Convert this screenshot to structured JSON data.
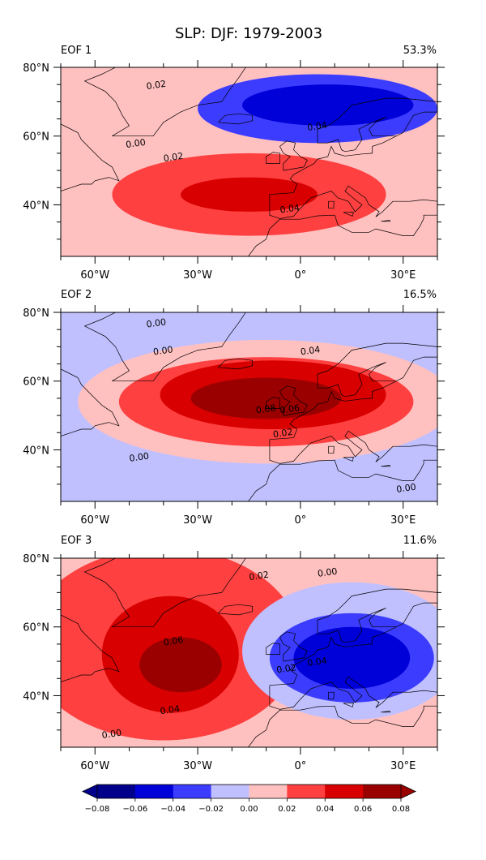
{
  "figure": {
    "title": "SLP: DJF: 1979-2003"
  },
  "colorbar": {
    "ticks": [
      "−0.08",
      "−0.06",
      "−0.04",
      "−0.02",
      "0.00",
      "0.02",
      "0.04",
      "0.06",
      "0.08"
    ],
    "levels": [
      -0.08,
      -0.06,
      -0.04,
      -0.02,
      0.0,
      0.02,
      0.04,
      0.06,
      0.08
    ],
    "colors": [
      "#00008b",
      "#0000d8",
      "#3c3cff",
      "#c0c0ff",
      "#ffc0c0",
      "#ff4040",
      "#d80000",
      "#9b0000"
    ],
    "extend": "both"
  },
  "map": {
    "lon_range": [
      -70,
      40
    ],
    "lat_range": [
      25,
      80
    ],
    "ytick_labels": [
      "80°N",
      "60°N",
      "40°N"
    ],
    "ytick_values": [
      80,
      60,
      40
    ],
    "xtick_labels": [
      "60°W",
      "30°W",
      "0°",
      "30°E"
    ],
    "xtick_values": [
      -60,
      -30,
      0,
      30
    ]
  },
  "chart_data": [
    {
      "type": "heatmap",
      "label": "EOF 1",
      "variance": "53.3%",
      "background_value": 0.01,
      "blobs": [
        {
          "lon": -15,
          "lat": 43,
          "rlon": 40,
          "rlat": 12,
          "value": 0.025
        },
        {
          "lon": -15,
          "lat": 43,
          "rlon": 20,
          "rlat": 5,
          "value": 0.05
        },
        {
          "lon": -38,
          "lat": 62,
          "rlon": 45,
          "rlat": 7,
          "value": 0.0
        },
        {
          "lon": 5,
          "lat": 68,
          "rlon": 35,
          "rlat": 10,
          "value": -0.03
        },
        {
          "lon": 8,
          "lat": 69,
          "rlon": 25,
          "rlat": 6,
          "value": -0.05
        }
      ],
      "contour_labels": [
        {
          "lon": -42,
          "lat": 74,
          "text": "0.02"
        },
        {
          "lon": 5,
          "lat": 62,
          "text": "0.04"
        },
        {
          "lon": -48,
          "lat": 57,
          "text": "0.00"
        },
        {
          "lon": -37,
          "lat": 53,
          "text": "0.02"
        },
        {
          "lon": -3,
          "lat": 38,
          "text": "0.04"
        }
      ]
    },
    {
      "type": "heatmap",
      "label": "EOF 2",
      "variance": "16.5%",
      "background_value": -0.01,
      "blobs": [
        {
          "lon": -10,
          "lat": 54,
          "rlon": 55,
          "rlat": 18,
          "value": 0.01
        },
        {
          "lon": -10,
          "lat": 54,
          "rlon": 43,
          "rlat": 13,
          "value": 0.03
        },
        {
          "lon": -8,
          "lat": 56,
          "rlon": 33,
          "rlat": 10,
          "value": 0.05
        },
        {
          "lon": -10,
          "lat": 55,
          "rlon": 22,
          "rlat": 6,
          "value": 0.07
        }
      ],
      "contour_labels": [
        {
          "lon": -42,
          "lat": 76,
          "text": "0.00"
        },
        {
          "lon": -40,
          "lat": 68,
          "text": "0.00"
        },
        {
          "lon": 3,
          "lat": 68,
          "text": "0.04"
        },
        {
          "lon": -10,
          "lat": 51,
          "text": "0.08"
        },
        {
          "lon": -3,
          "lat": 51,
          "text": "0.06"
        },
        {
          "lon": -5,
          "lat": 44,
          "text": "0.02"
        },
        {
          "lon": -47,
          "lat": 37,
          "text": "0.00"
        },
        {
          "lon": 31,
          "lat": 28,
          "text": "0.00"
        }
      ]
    },
    {
      "type": "heatmap",
      "label": "EOF 3",
      "variance": "11.6%",
      "background_value": 0.01,
      "blobs": [
        {
          "lon": -40,
          "lat": 55,
          "rlon": 40,
          "rlat": 28,
          "value": 0.03
        },
        {
          "lon": -38,
          "lat": 52,
          "rlon": 20,
          "rlat": 17,
          "value": 0.05
        },
        {
          "lon": -35,
          "lat": 49,
          "rlon": 12,
          "rlat": 8,
          "value": 0.07
        },
        {
          "lon": 15,
          "lat": 53,
          "rlon": 32,
          "rlat": 20,
          "value": -0.01
        },
        {
          "lon": 15,
          "lat": 51,
          "rlon": 24,
          "rlat": 13,
          "value": -0.03
        },
        {
          "lon": 15,
          "lat": 51,
          "rlon": 17,
          "rlat": 9,
          "value": -0.05
        }
      ],
      "contour_labels": [
        {
          "lon": -12,
          "lat": 74,
          "text": "0.02"
        },
        {
          "lon": 8,
          "lat": 75,
          "text": "0.00"
        },
        {
          "lon": -37,
          "lat": 55,
          "text": "0.06"
        },
        {
          "lon": -4,
          "lat": 47,
          "text": "0.02"
        },
        {
          "lon": 5,
          "lat": 49,
          "text": "0.04"
        },
        {
          "lon": -38,
          "lat": 35,
          "text": "0.04"
        },
        {
          "lon": -55,
          "lat": 28,
          "text": "0.00"
        }
      ]
    }
  ]
}
